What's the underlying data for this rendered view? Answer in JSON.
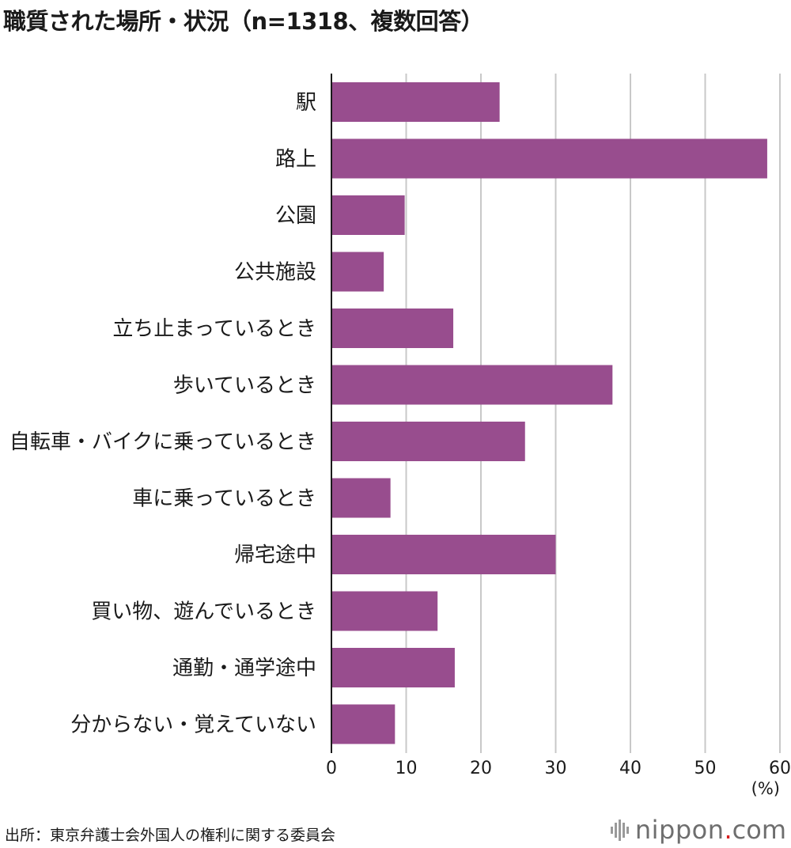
{
  "title": "職質された場所・状況（n=1318、複数回答）",
  "source": "出所：東京弁護士会外国人の権利に関する委員会",
  "brand": {
    "name": "nippon",
    "dot": ".",
    "tld": "com"
  },
  "colors": {
    "bar": "#984d8e",
    "grid": "#c8c8c8",
    "axis": "#1a1a1a"
  },
  "chart_data": {
    "type": "bar",
    "orientation": "horizontal",
    "categories": [
      "駅",
      "路上",
      "公園",
      "公共施設",
      "立ち止まっているとき",
      "歩いているとき",
      "自転車・バイクに乗っているとき",
      "車に乗っているとき",
      "帰宅途中",
      "買い物、遊んでいるとき",
      "通勤・通学途中",
      "分からない・覚えていない"
    ],
    "values": [
      22.5,
      58.3,
      9.8,
      7.0,
      16.3,
      37.6,
      25.9,
      7.9,
      30.0,
      14.2,
      16.5,
      8.5
    ],
    "xlim": [
      0,
      60
    ],
    "ticks": [
      "0",
      "10",
      "20",
      "30",
      "40",
      "50",
      "60"
    ],
    "unit": "(%)",
    "grid": true
  }
}
